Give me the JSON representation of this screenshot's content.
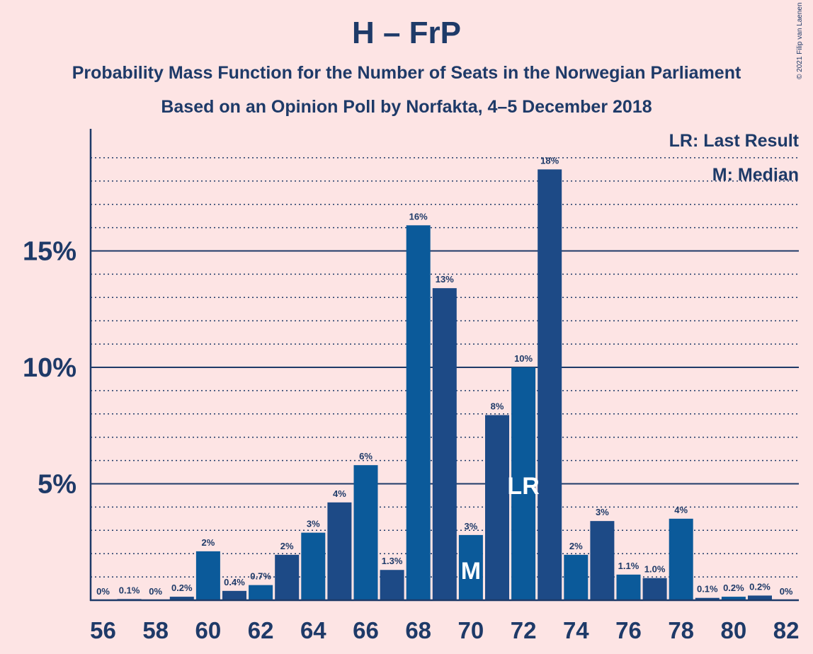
{
  "title": "H – FrP",
  "subtitle_1": "Probability Mass Function for the Number of Seats in the Norwegian Parliament",
  "subtitle_2": "Based on an Opinion Poll by Norfakta, 4–5 December 2018",
  "copyright": "© 2021 Filip van Laenen",
  "legend": {
    "last_result": "LR: Last Result",
    "median": "M: Median"
  },
  "colors": {
    "background": "#fde4e4",
    "bar_dark": "#1d4a86",
    "bar_light": "#0b5a9a",
    "text": "#1e3a68"
  },
  "chart_data": {
    "type": "bar",
    "xlabel": "",
    "ylabel": "",
    "ylim": [
      0,
      20
    ],
    "grid": "solid major lines every 5%, dotted minor lines every 1%",
    "y_tick_labels": [
      "5%",
      "10%",
      "15%"
    ],
    "x_tick_labels": [
      "56",
      "58",
      "60",
      "62",
      "64",
      "66",
      "68",
      "70",
      "72",
      "74",
      "76",
      "78",
      "80",
      "82"
    ],
    "categories": [
      56,
      57,
      58,
      59,
      60,
      61,
      62,
      63,
      64,
      65,
      66,
      67,
      68,
      69,
      70,
      71,
      72,
      73,
      74,
      75,
      76,
      77,
      78,
      79,
      80,
      81,
      82
    ],
    "values": [
      0,
      0.05,
      0,
      0.15,
      2.1,
      0.4,
      0.65,
      1.95,
      2.9,
      4.2,
      5.8,
      1.3,
      16.1,
      13.4,
      2.8,
      7.95,
      10.0,
      18.5,
      1.95,
      3.4,
      1.1,
      0.95,
      3.5,
      0.1,
      0.15,
      0.2,
      0
    ],
    "labels": [
      "0%",
      "0.1%",
      "0%",
      "0.2%",
      "2%",
      "0.4%",
      "0.7%",
      "2%",
      "3%",
      "4%",
      "6%",
      "1.3%",
      "16%",
      "13%",
      "3%",
      "8%",
      "10%",
      "18%",
      "2%",
      "3%",
      "1.1%",
      "1.0%",
      "4%",
      "0.1%",
      "0.2%",
      "0.2%",
      "0%"
    ],
    "median_seat": 70,
    "median_marker": "M",
    "last_result_seat": 72,
    "last_result_marker": "LR"
  }
}
